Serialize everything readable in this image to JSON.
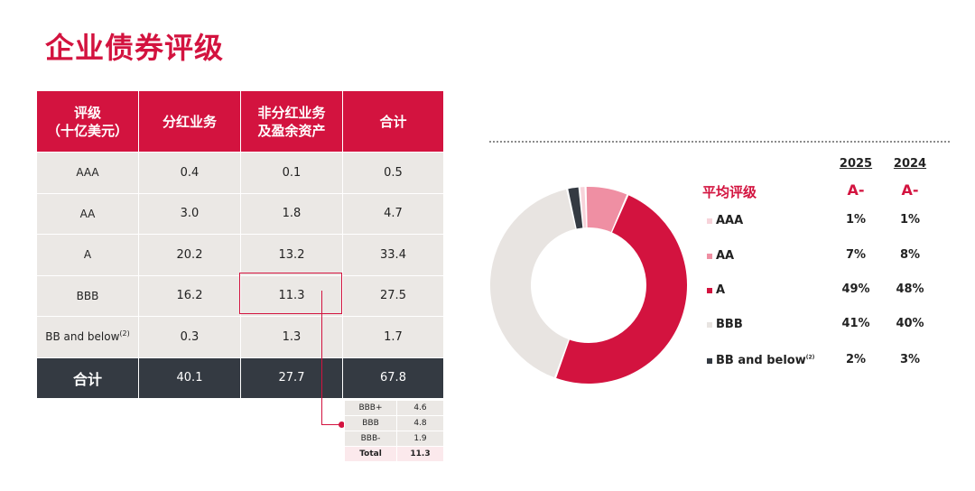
{
  "title": "企业债券评级",
  "table": {
    "headers": [
      "评级\n（十亿美元）",
      "分红业务",
      "非分红业务\n及盈余资产",
      "合计"
    ],
    "rows": [
      {
        "label": "AAA",
        "note": "",
        "participating": "0.4",
        "non_participating": "0.1",
        "total": "0.5"
      },
      {
        "label": "AA",
        "note": "",
        "participating": "3.0",
        "non_participating": "1.8",
        "total": "4.7"
      },
      {
        "label": "A",
        "note": "",
        "participating": "20.2",
        "non_participating": "13.2",
        "total": "33.4"
      },
      {
        "label": "BBB",
        "note": "",
        "participating": "16.2",
        "non_participating": "11.3",
        "total": "27.5"
      },
      {
        "label": "BB and below",
        "note": "(2)",
        "participating": "0.3",
        "non_participating": "1.3",
        "total": "1.7"
      }
    ],
    "total_row": {
      "label": "合计",
      "participating": "40.1",
      "non_participating": "27.7",
      "total": "67.8"
    }
  },
  "bbb_breakdown": {
    "rows": [
      {
        "label": "BBB+",
        "value": "4.6"
      },
      {
        "label": "BBB",
        "value": "4.8"
      },
      {
        "label": "BBB-",
        "value": "1.9"
      }
    ],
    "total": {
      "label": "Total",
      "value": "11.3"
    }
  },
  "legend": {
    "years": [
      "2025",
      "2024"
    ],
    "average_label": "平均评级",
    "average_values": [
      "A-",
      "A-"
    ],
    "items": [
      {
        "name": "AAA",
        "note": "",
        "color": "#f7d3da",
        "v2025": "1%",
        "v2024": "1%"
      },
      {
        "name": "AA",
        "note": "",
        "color": "#ef8fa3",
        "v2025": "7%",
        "v2024": "8%"
      },
      {
        "name": "A",
        "note": "",
        "color": "#d3133f",
        "v2025": "49%",
        "v2024": "48%"
      },
      {
        "name": "BBB",
        "note": "",
        "color": "#e8e4e1",
        "v2025": "41%",
        "v2024": "40%"
      },
      {
        "name": "BB and below",
        "note": "(2)",
        "color": "#343a42",
        "v2025": "2%",
        "v2024": "3%"
      }
    ]
  },
  "chart_data": {
    "type": "pie",
    "donut": true,
    "categories": [
      "AAA",
      "AA",
      "A",
      "BBB",
      "BB and below"
    ],
    "values": [
      1,
      7,
      49,
      41,
      2
    ],
    "unit": "%",
    "colors": [
      "#f7d3da",
      "#ef8fa3",
      "#d3133f",
      "#e8e4e1",
      "#343a42"
    ]
  }
}
